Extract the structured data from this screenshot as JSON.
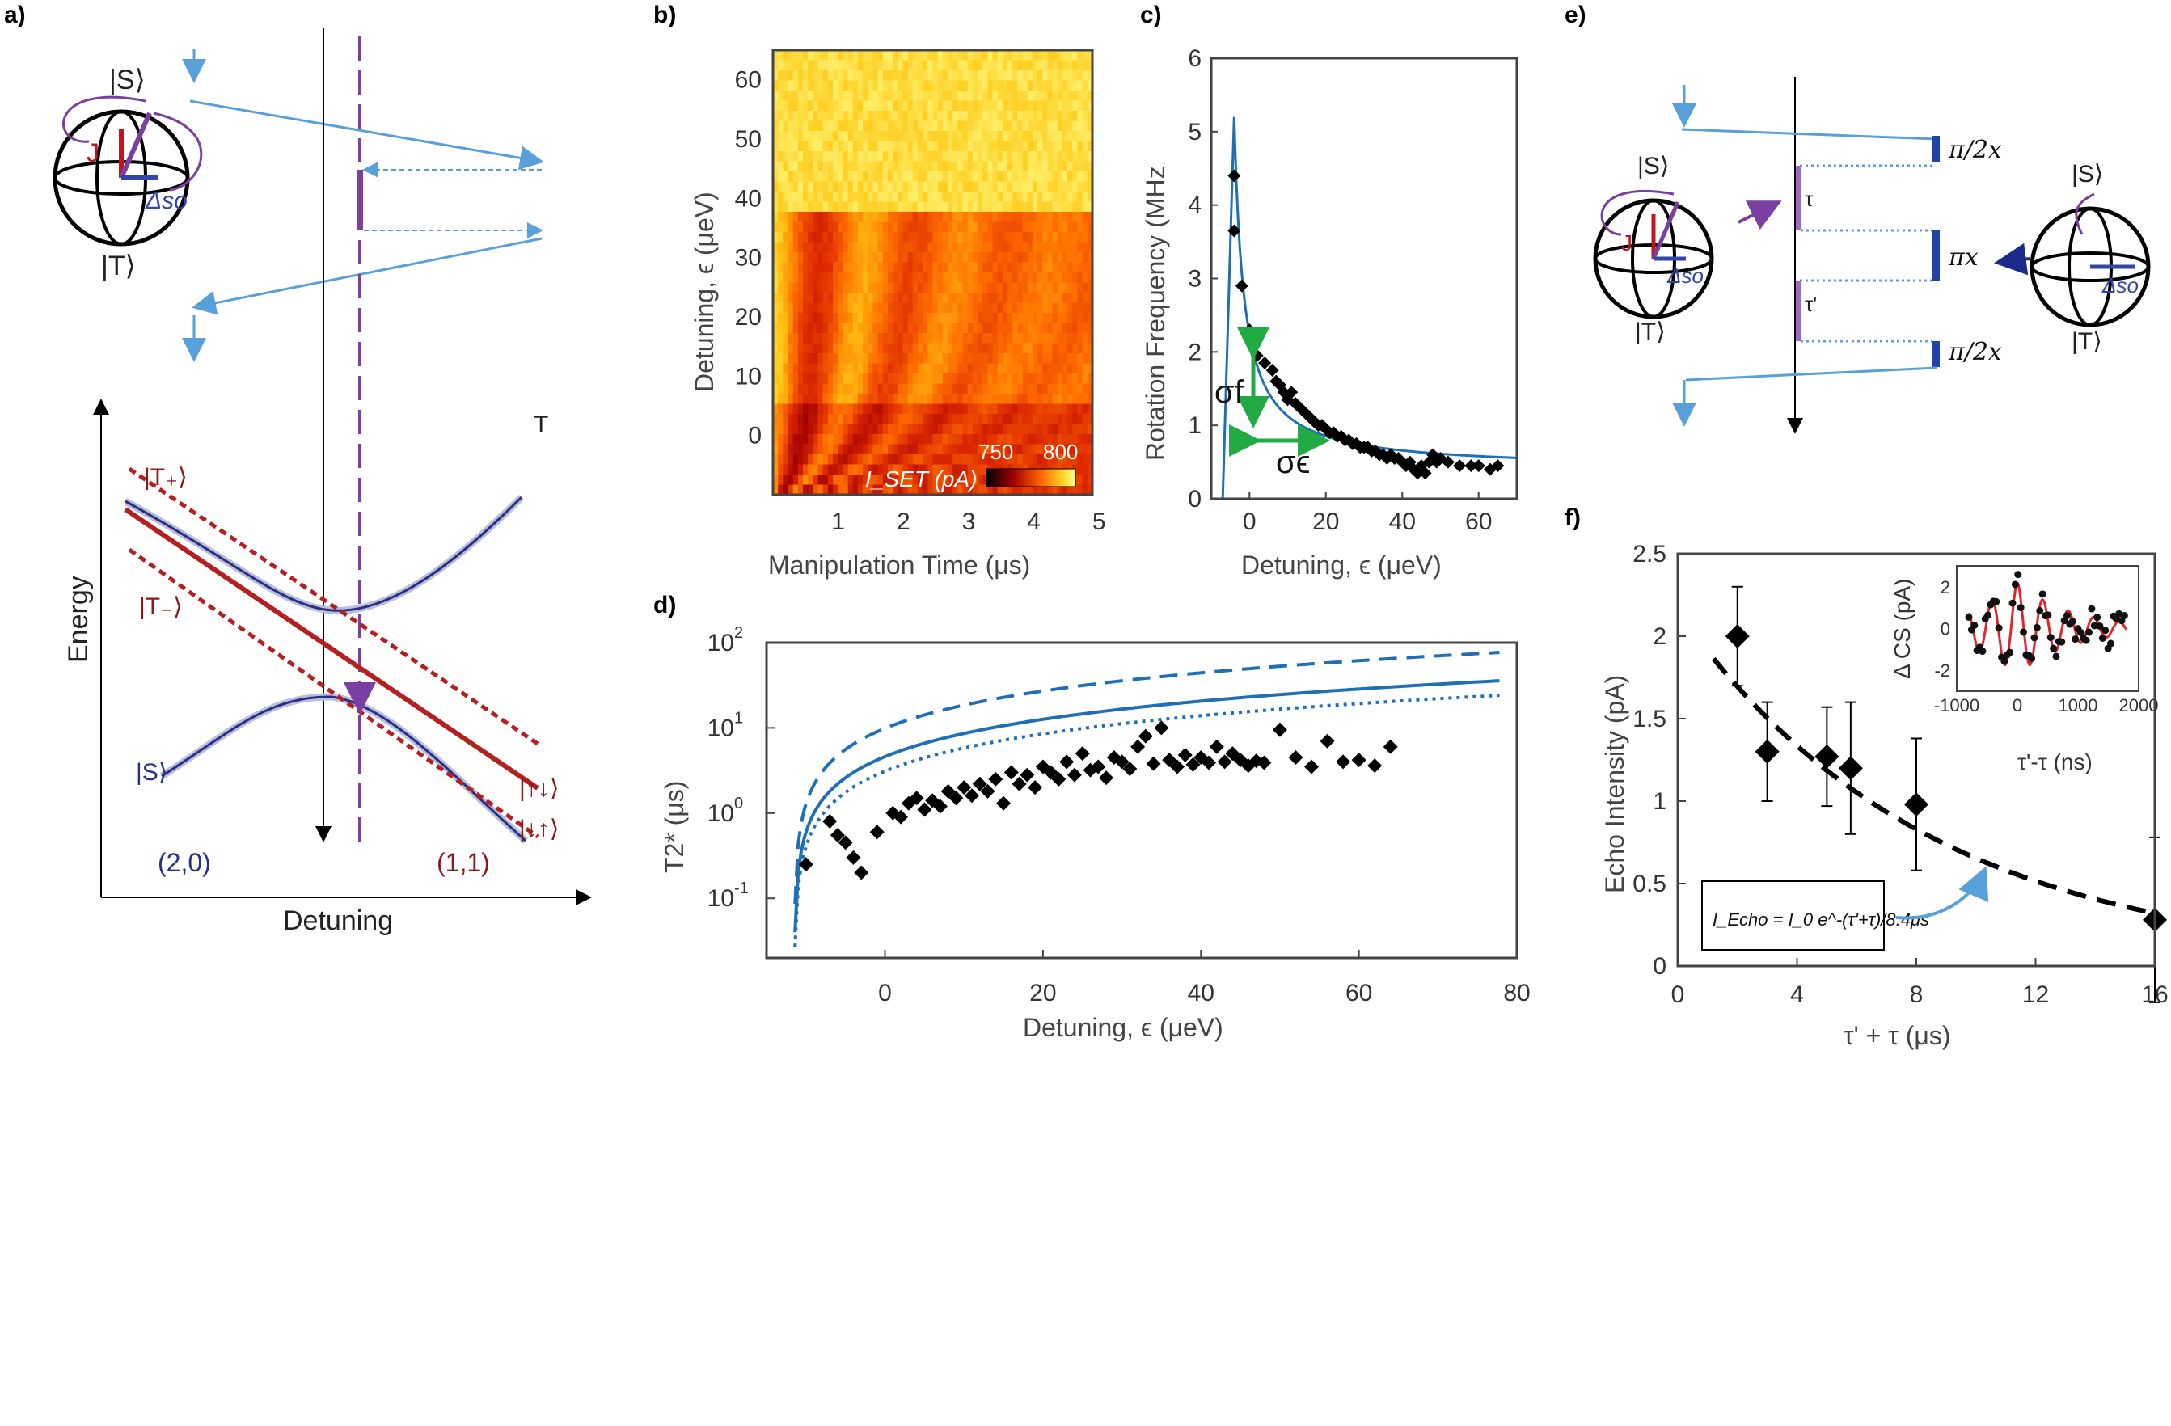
{
  "panels": {
    "a": "a)",
    "b": "b)",
    "c": "c)",
    "d": "d)",
    "e": "e)",
    "f": "f)"
  },
  "panel_a": {
    "ylabel": "Energy",
    "xlabel": "Detuning",
    "T_label": "T",
    "states": {
      "S_top": "|S⟩",
      "T_bottom": "|T⟩",
      "J": "J",
      "delta_so": "Δso",
      "T_plus": "|T₊⟩",
      "T_minus": "|T₋⟩",
      "S": "|S⟩",
      "ud": "|↑↓⟩",
      "du": "|↓↑⟩",
      "region_20": "(2,0)",
      "region_11": "(1,1)"
    }
  },
  "panel_b": {
    "ylabel": "Detuning, ϵ (μeV)",
    "xlabel": "Manipulation Time (μs)",
    "yticks": [
      "0",
      "10",
      "20",
      "30",
      "40",
      "50",
      "60"
    ],
    "xticks": [
      "1",
      "2",
      "3",
      "4",
      "5"
    ],
    "colorbar_label": "I_SET (pA)",
    "colorbar_min": "750",
    "colorbar_max": "800"
  },
  "panel_e": {
    "tau": "τ",
    "tau_prime": "τ'",
    "pi_half_1": "π/2x",
    "pi_x": "πx",
    "pi_half_2": "π/2x",
    "S": "|S⟩",
    "T": "|T⟩",
    "J": "J",
    "delta_so": "Δso"
  },
  "colors": {
    "blue_fit": "#1f6fb5",
    "dark_red": "#b41f1f",
    "purple": "#7a3fa0",
    "green_arrow": "#22aa44",
    "light_blue": "#5aa0d8"
  },
  "chart_data": [
    {
      "id": "c",
      "type": "scatter",
      "xlabel": "Detuning, ϵ (μeV)",
      "ylabel": "Rotation Frequency (MHz",
      "xlim": [
        -10,
        70
      ],
      "ylim": [
        0,
        6
      ],
      "xticks": [
        "0",
        "20",
        "40",
        "60"
      ],
      "yticks": [
        "0",
        "1",
        "2",
        "3",
        "4",
        "5",
        "6"
      ],
      "annotations": {
        "sigma_f": "σf",
        "sigma_eps": "σϵ"
      },
      "points": [
        [
          -4,
          4.4
        ],
        [
          -4,
          3.65
        ],
        [
          -2,
          2.9
        ],
        [
          0,
          2.3
        ],
        [
          2,
          1.95
        ],
        [
          4,
          1.85
        ],
        [
          6,
          1.75
        ],
        [
          7,
          1.6
        ],
        [
          8,
          1.55
        ],
        [
          9,
          1.45
        ],
        [
          10,
          1.35
        ],
        [
          11,
          1.45
        ],
        [
          12,
          1.3
        ],
        [
          13,
          1.25
        ],
        [
          14,
          1.2
        ],
        [
          15,
          1.15
        ],
        [
          16,
          1.1
        ],
        [
          17,
          1.05
        ],
        [
          18,
          1.0
        ],
        [
          19,
          1.0
        ],
        [
          20,
          0.95
        ],
        [
          21,
          0.9
        ],
        [
          22,
          0.9
        ],
        [
          23,
          0.85
        ],
        [
          24,
          0.85
        ],
        [
          25,
          0.8
        ],
        [
          26,
          0.8
        ],
        [
          27,
          0.75
        ],
        [
          28,
          0.75
        ],
        [
          29,
          0.7
        ],
        [
          30,
          0.7
        ],
        [
          31,
          0.7
        ],
        [
          32,
          0.65
        ],
        [
          33,
          0.65
        ],
        [
          34,
          0.6
        ],
        [
          35,
          0.6
        ],
        [
          36,
          0.55
        ],
        [
          37,
          0.6
        ],
        [
          38,
          0.55
        ],
        [
          39,
          0.55
        ],
        [
          40,
          0.5
        ],
        [
          41,
          0.45
        ],
        [
          42,
          0.5
        ],
        [
          43,
          0.4
        ],
        [
          44,
          0.35
        ],
        [
          45,
          0.45
        ],
        [
          46,
          0.35
        ],
        [
          47,
          0.5
        ],
        [
          48,
          0.6
        ],
        [
          49,
          0.5
        ],
        [
          50,
          0.55
        ],
        [
          52,
          0.5
        ],
        [
          55,
          0.45
        ],
        [
          58,
          0.45
        ],
        [
          60,
          0.45
        ],
        [
          63,
          0.4
        ],
        [
          65,
          0.45
        ]
      ],
      "fit": {
        "form": "1 + 12/(x+6.5)",
        "name": ""
      }
    },
    {
      "id": "d",
      "type": "scatter",
      "xlabel": "Detuning, ϵ (μeV)",
      "ylabel": "T2* (μs)",
      "xlim": [
        -15,
        80
      ],
      "ylim_log": [
        -1.7,
        2
      ],
      "xticks": [
        "0",
        "20",
        "40",
        "60",
        "80"
      ],
      "yticks": [
        "10^-1",
        "10^0",
        "10^1",
        "10^2"
      ],
      "points": [
        [
          -10,
          0.25
        ],
        [
          -7,
          0.8
        ],
        [
          -6,
          0.55
        ],
        [
          -5,
          0.45
        ],
        [
          -4,
          0.3
        ],
        [
          -3,
          0.2
        ],
        [
          -1,
          0.6
        ],
        [
          1,
          1.0
        ],
        [
          2,
          0.9
        ],
        [
          3,
          1.3
        ],
        [
          4,
          1.5
        ],
        [
          5,
          1.1
        ],
        [
          6,
          1.4
        ],
        [
          7,
          1.2
        ],
        [
          8,
          1.8
        ],
        [
          9,
          1.5
        ],
        [
          10,
          2.0
        ],
        [
          11,
          1.6
        ],
        [
          12,
          2.2
        ],
        [
          13,
          1.8
        ],
        [
          14,
          2.5
        ],
        [
          15,
          1.3
        ],
        [
          16,
          3.0
        ],
        [
          17,
          2.2
        ],
        [
          18,
          2.8
        ],
        [
          19,
          2.0
        ],
        [
          20,
          3.5
        ],
        [
          21,
          3.0
        ],
        [
          22,
          2.5
        ],
        [
          23,
          4.0
        ],
        [
          24,
          2.8
        ],
        [
          25,
          5.0
        ],
        [
          26,
          3.2
        ],
        [
          27,
          3.5
        ],
        [
          28,
          2.6
        ],
        [
          29,
          4.5
        ],
        [
          30,
          4.0
        ],
        [
          31,
          3.3
        ],
        [
          32,
          6.0
        ],
        [
          33,
          8.0
        ],
        [
          34,
          3.8
        ],
        [
          35,
          10.0
        ],
        [
          36,
          4.2
        ],
        [
          37,
          3.5
        ],
        [
          38,
          4.8
        ],
        [
          39,
          3.7
        ],
        [
          40,
          4.5
        ],
        [
          41,
          3.9
        ],
        [
          42,
          6.0
        ],
        [
          43,
          4.0
        ],
        [
          44,
          5.0
        ],
        [
          45,
          4.2
        ],
        [
          46,
          3.6
        ],
        [
          47,
          4.1
        ],
        [
          48,
          3.9
        ],
        [
          50,
          9.5
        ],
        [
          52,
          4.5
        ],
        [
          54,
          3.5
        ],
        [
          56,
          7.0
        ],
        [
          58,
          4.0
        ],
        [
          60,
          4.2
        ],
        [
          62,
          3.6
        ],
        [
          64,
          6.0
        ]
      ],
      "curves": [
        {
          "style": "dashed",
          "form": "0.86*(x+11.5)"
        },
        {
          "style": "solid",
          "form": "0.4*(x+11.5)"
        },
        {
          "style": "dotted",
          "form": "0.27*(x+11.5)"
        }
      ]
    },
    {
      "id": "f",
      "type": "scatter",
      "xlabel": "τ' + τ (μs)",
      "ylabel": "Echo Intensity (pA)",
      "xlim": [
        0,
        16
      ],
      "ylim": [
        0,
        2.5
      ],
      "xticks": [
        "0",
        "4",
        "8",
        "12",
        "16"
      ],
      "yticks": [
        "0",
        "0.5",
        "1",
        "1.5",
        "2",
        "2.5"
      ],
      "points": [
        {
          "x": 2,
          "y": 2.0,
          "err": 0.3
        },
        {
          "x": 3,
          "y": 1.3,
          "err": 0.3
        },
        {
          "x": 5,
          "y": 1.27,
          "err": 0.3
        },
        {
          "x": 5.8,
          "y": 1.2,
          "err": 0.4
        },
        {
          "x": 8,
          "y": 0.98,
          "err": 0.4
        },
        {
          "x": 16,
          "y": 0.28,
          "err": 0.5
        }
      ],
      "fit": {
        "form": "2.5*exp(-x/8.4)",
        "style": "dashed"
      },
      "formula_text": "I_Echo = I_0 e^-(τ'+τ)/8.4μs",
      "inset": {
        "xlabel": "τ'-τ (ns)",
        "ylabel": "Δ CS (pA)",
        "xlim": [
          -1000,
          2000
        ],
        "ylim": [
          -3,
          3
        ],
        "xticks": [
          "-1000",
          "0",
          "1000",
          "2000"
        ],
        "yticks": [
          "-2",
          "0",
          "2"
        ]
      }
    }
  ]
}
